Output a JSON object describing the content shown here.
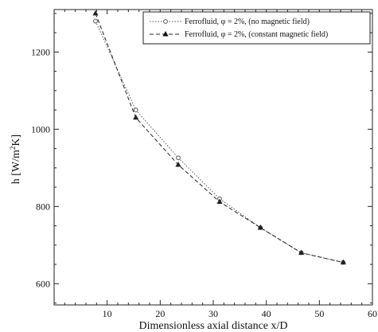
{
  "chart_data": {
    "type": "line",
    "xlabel": "Dimensionless axial distance x/D",
    "ylabel_main": "h [W/m",
    "ylabel_sup": "2",
    "ylabel_end": "K]",
    "xlim": [
      0,
      60
    ],
    "ylim": [
      545,
      1310
    ],
    "xticks": [
      10,
      20,
      30,
      40,
      50,
      60
    ],
    "xtick_labels": [
      "10",
      "20",
      "30",
      "40",
      "50",
      "60"
    ],
    "yticks": [
      600,
      800,
      1000,
      1200
    ],
    "ytick_labels": [
      "600",
      "800",
      "1000",
      "1200"
    ],
    "grid": false,
    "legend_position": "top-right",
    "series": [
      {
        "name": "Ferrofluid, φ = 2%, (no magnetic field)",
        "style": "dotted",
        "marker": "open-circle",
        "color": "#555555",
        "x": [
          7.8,
          15.4,
          23.4,
          31.2,
          38.9,
          46.6,
          54.5
        ],
        "y": [
          1280,
          1050,
          926,
          820,
          745,
          680,
          655
        ]
      },
      {
        "name": "Ferrofluid, φ = 2%, (constant magnetic field)",
        "style": "dashed",
        "marker": "filled-triangle",
        "color": "#222222",
        "x": [
          7.8,
          15.4,
          23.4,
          31.2,
          38.9,
          46.6,
          54.5
        ],
        "y": [
          1300,
          1030,
          908,
          812,
          745,
          680,
          655
        ]
      }
    ]
  }
}
